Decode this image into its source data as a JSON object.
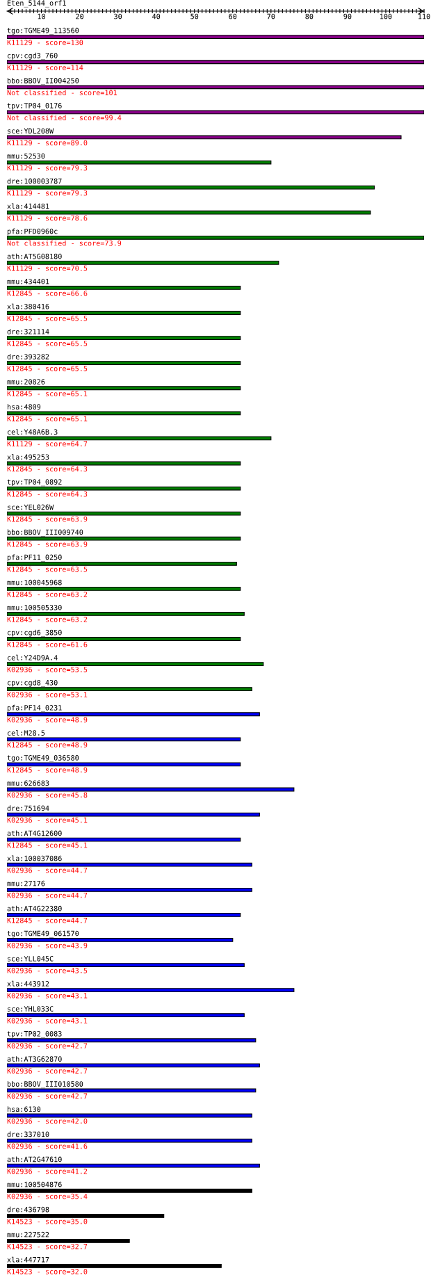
{
  "chart_data": {
    "type": "bar",
    "orientation": "horizontal",
    "title": "Eten_5144_orf1",
    "categories": [
      "tgo:TGME49_113560",
      "cpv:cgd3_760",
      "bbo:BBOV_II004250",
      "tpv:TP04_0176",
      "sce:YDL208W",
      "mmu:52530",
      "dre:100003787",
      "xla:414481",
      "pfa:PFD0960c",
      "ath:AT5G08180",
      "mmu:434401",
      "xla:380416",
      "dre:321114",
      "dre:393282",
      "mmu:20826",
      "hsa:4809",
      "cel:Y48A6B.3",
      "xla:495253",
      "tpv:TP04_0892",
      "sce:YEL026W",
      "bbo:BBOV_III009740",
      "pfa:PF11_0250",
      "mmu:100045968",
      "mmu:100505330",
      "cpv:cgd6_3850",
      "cel:Y24D9A.4",
      "cpv:cgd8_430",
      "pfa:PF14_0231",
      "cel:M28.5",
      "tgo:TGME49_036580",
      "mmu:626683",
      "dre:751694",
      "ath:AT4G12600",
      "xla:100037086",
      "mmu:27176",
      "ath:AT4G22380",
      "tgo:TGME49_061570",
      "sce:YLL045C",
      "xla:443912",
      "sce:YHL033C",
      "tpv:TP02_0083",
      "ath:AT3G62870",
      "bbo:BBOV_III010580",
      "hsa:6130",
      "dre:337010",
      "ath:AT2G47610",
      "mmu:100504876",
      "dre:436798",
      "mmu:227522",
      "xla:447717"
    ],
    "base": [
      1,
      1,
      1,
      1,
      1,
      1,
      1,
      1,
      1,
      1,
      1,
      1,
      1,
      1,
      1,
      1,
      1,
      1,
      1,
      1,
      1,
      1,
      1,
      1,
      1,
      1,
      1,
      1,
      1,
      1,
      1,
      1,
      1,
      1,
      1,
      1,
      1,
      1,
      1,
      1,
      1,
      1,
      1,
      1,
      1,
      1,
      1,
      1,
      1,
      1
    ],
    "values": [
      109,
      109,
      109,
      109,
      103,
      69,
      96,
      95,
      109,
      71,
      61,
      61,
      61,
      61,
      61,
      61,
      69,
      61,
      61,
      61,
      61,
      60,
      61,
      62,
      61,
      67,
      64,
      66,
      61,
      61,
      75,
      66,
      61,
      64,
      64,
      61,
      59,
      62,
      75,
      62,
      65,
      66,
      65,
      64,
      64,
      66,
      64,
      41,
      32,
      56
    ],
    "colors": [
      "#880088",
      "#880088",
      "#880088",
      "#880088",
      "#880088",
      "#008000",
      "#008000",
      "#008000",
      "#008000",
      "#008000",
      "#008000",
      "#008000",
      "#008000",
      "#008000",
      "#008000",
      "#008000",
      "#008000",
      "#008000",
      "#008000",
      "#008000",
      "#008000",
      "#008000",
      "#008000",
      "#008000",
      "#008000",
      "#008000",
      "#008000",
      "#0000ff",
      "#0000ff",
      "#0000ff",
      "#0000ff",
      "#0000ff",
      "#0000ff",
      "#0000ff",
      "#0000ff",
      "#0000ff",
      "#0000ff",
      "#0000ff",
      "#0000ff",
      "#0000ff",
      "#0000ff",
      "#0000ff",
      "#0000ff",
      "#0000ff",
      "#0000ff",
      "#0000ff",
      "#000000",
      "#000000",
      "#000000",
      "#000000"
    ],
    "xlim": [
      1,
      110
    ],
    "xticks": [
      {
        "value": 2,
        "label": null
      },
      {
        "value": 3,
        "label": null
      },
      {
        "value": 4,
        "label": null
      },
      {
        "value": 5,
        "label": null
      },
      {
        "value": 6,
        "label": null
      },
      {
        "value": 7,
        "label": null
      },
      {
        "value": 8,
        "label": null
      },
      {
        "value": 9,
        "label": null
      },
      10,
      {
        "value": 11,
        "label": null
      },
      {
        "value": 12,
        "label": null
      },
      {
        "value": 13,
        "label": null
      },
      {
        "value": 14,
        "label": null
      },
      {
        "value": 15,
        "label": null
      },
      {
        "value": 16,
        "label": null
      },
      {
        "value": 17,
        "label": null
      },
      {
        "value": 18,
        "label": null
      },
      {
        "value": 19,
        "label": null
      },
      20,
      {
        "value": 21,
        "label": null
      },
      {
        "value": 22,
        "label": null
      },
      {
        "value": 23,
        "label": null
      },
      {
        "value": 24,
        "label": null
      },
      {
        "value": 25,
        "label": null
      },
      {
        "value": 26,
        "label": null
      },
      {
        "value": 27,
        "label": null
      },
      {
        "value": 28,
        "label": null
      },
      {
        "value": 29,
        "label": null
      },
      30,
      {
        "value": 31,
        "label": null
      },
      {
        "value": 32,
        "label": null
      },
      {
        "value": 33,
        "label": null
      },
      {
        "value": 34,
        "label": null
      },
      {
        "value": 35,
        "label": null
      },
      {
        "value": 36,
        "label": null
      },
      {
        "value": 37,
        "label": null
      },
      {
        "value": 38,
        "label": null
      },
      {
        "value": 39,
        "label": null
      },
      40,
      {
        "value": 41,
        "label": null
      },
      {
        "value": 42,
        "label": null
      },
      {
        "value": 43,
        "label": null
      },
      {
        "value": 44,
        "label": null
      },
      {
        "value": 45,
        "label": null
      },
      {
        "value": 46,
        "label": null
      },
      {
        "value": 47,
        "label": null
      },
      {
        "value": 48,
        "label": null
      },
      {
        "value": 49,
        "label": null
      },
      50,
      {
        "value": 51,
        "label": null
      },
      {
        "value": 52,
        "label": null
      },
      {
        "value": 53,
        "label": null
      },
      {
        "value": 54,
        "label": null
      },
      {
        "value": 55,
        "label": null
      },
      {
        "value": 56,
        "label": null
      },
      {
        "value": 57,
        "label": null
      },
      {
        "value": 58,
        "label": null
      },
      {
        "value": 59,
        "label": null
      },
      60,
      {
        "value": 61,
        "label": null
      },
      {
        "value": 62,
        "label": null
      },
      {
        "value": 63,
        "label": null
      },
      {
        "value": 64,
        "label": null
      },
      {
        "value": 65,
        "label": null
      },
      {
        "value": 66,
        "label": null
      },
      {
        "value": 67,
        "label": null
      },
      {
        "value": 68,
        "label": null
      },
      {
        "value": 69,
        "label": null
      },
      70,
      {
        "value": 71,
        "label": null
      },
      {
        "value": 72,
        "label": null
      },
      {
        "value": 73,
        "label": null
      },
      {
        "value": 74,
        "label": null
      },
      {
        "value": 75,
        "label": null
      },
      {
        "value": 76,
        "label": null
      },
      {
        "value": 77,
        "label": null
      },
      {
        "value": 78,
        "label": null
      },
      {
        "value": 79,
        "label": null
      },
      80,
      {
        "value": 81,
        "label": null
      },
      {
        "value": 82,
        "label": null
      },
      {
        "value": 83,
        "label": null
      },
      {
        "value": 84,
        "label": null
      },
      {
        "value": 85,
        "label": null
      },
      {
        "value": 86,
        "label": null
      },
      {
        "value": 87,
        "label": null
      },
      {
        "value": 88,
        "label": null
      },
      {
        "value": 89,
        "label": null
      },
      90,
      {
        "value": 91,
        "label": null
      },
      {
        "value": 92,
        "label": null
      },
      {
        "value": 93,
        "label": null
      },
      {
        "value": 94,
        "label": null
      },
      {
        "value": 95,
        "label": null
      },
      {
        "value": 96,
        "label": null
      },
      {
        "value": 97,
        "label": null
      },
      {
        "value": 98,
        "label": null
      },
      {
        "value": 99,
        "label": null
      },
      100,
      {
        "value": 101,
        "label": null
      },
      {
        "value": 102,
        "label": null
      },
      {
        "value": 103,
        "label": null
      },
      {
        "value": 104,
        "label": null
      },
      {
        "value": 105,
        "label": null
      },
      {
        "value": 106,
        "label": null
      },
      {
        "value": 107,
        "label": null
      },
      {
        "value": 108,
        "label": null
      },
      {
        "value": 109,
        "label": null
      },
      110
    ],
    "annotations": [
      "K11129 - score=130",
      "K11129 - score=114",
      "Not classified - score=101",
      "Not classified - score=99.4",
      "K11129 - score=89.0",
      "K11129 - score=79.3",
      "K11129 - score=79.3",
      "K11129 - score=78.6",
      "Not classified - score=73.9",
      "K11129 - score=70.5",
      "K12845 - score=66.6",
      "K12845 - score=65.5",
      "K12845 - score=65.5",
      "K12845 - score=65.5",
      "K12845 - score=65.1",
      "K12845 - score=65.1",
      "K11129 - score=64.7",
      "K12845 - score=64.3",
      "K12845 - score=64.3",
      "K12845 - score=63.9",
      "K12845 - score=63.9",
      "K12845 - score=63.5",
      "K12845 - score=63.2",
      "K12845 - score=63.2",
      "K12845 - score=61.6",
      "K02936 - score=53.5",
      "K02936 - score=53.1",
      "K02936 - score=48.9",
      "K12845 - score=48.9",
      "K12845 - score=48.9",
      "K02936 - score=45.8",
      "K02936 - score=45.1",
      "K12845 - score=45.1",
      "K02936 - score=44.7",
      "K02936 - score=44.7",
      "K12845 - score=44.7",
      "K02936 - score=43.9",
      "K02936 - score=43.5",
      "K02936 - score=43.1",
      "K02936 - score=43.1",
      "K02936 - score=42.7",
      "K02936 - score=42.7",
      "K02936 - score=42.7",
      "K02936 - score=42.0",
      "K02936 - score=41.6",
      "K02936 - score=41.2",
      "K02936 - score=35.4",
      "K14523 - score=35.0",
      "K14523 - score=32.7",
      "K14523 - score=32.0"
    ]
  }
}
